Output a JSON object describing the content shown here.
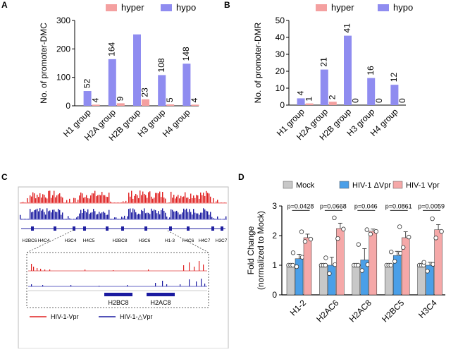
{
  "panel_labels": {
    "a": "A",
    "b": "B",
    "c": "C",
    "d": "D"
  },
  "colors": {
    "hyper": "#f4a0a0",
    "hypo": "#8f8cf0",
    "mock": "#c8c8c8",
    "dvpr": "#4a9fe8",
    "vpr": "#f5a8a8",
    "red_track": "#e02020",
    "blue_track": "#1a1aa0"
  },
  "chart_data": [
    {
      "type": "bar",
      "panel": "A",
      "categories": [
        "H1 group",
        "H2A group",
        "H2B group",
        "H3 group",
        "H4 group"
      ],
      "series": [
        {
          "name": "hyper",
          "values": [
            4,
            9,
            23,
            5,
            4
          ],
          "labels": [
            "4",
            "9",
            "23",
            "5",
            "4"
          ]
        },
        {
          "name": "hypo",
          "values": [
            52,
            164,
            251,
            108,
            148
          ],
          "labels": [
            "52",
            "164",
            "",
            "108",
            "148"
          ]
        }
      ],
      "ylabel": "No. of promoter-DMC",
      "ylim": [
        0,
        300
      ],
      "yticks": [
        "0",
        "100",
        "200",
        "300"
      ],
      "legend": "top"
    },
    {
      "type": "bar",
      "panel": "B",
      "categories": [
        "H1 group",
        "H2A group",
        "H2B group",
        "H3 group",
        "H4 group"
      ],
      "series": [
        {
          "name": "hyper",
          "values": [
            1,
            2,
            0,
            0,
            0
          ],
          "labels": [
            "1",
            "2",
            "0",
            "0",
            "0"
          ]
        },
        {
          "name": "hypo",
          "values": [
            4,
            21,
            41,
            16,
            12
          ],
          "labels": [
            "4",
            "21",
            "41",
            "16",
            "12"
          ]
        }
      ],
      "ylabel": "No. of promoter-DMR",
      "ylim": [
        0,
        50
      ],
      "yticks": [
        "0",
        "10",
        "20",
        "30",
        "40",
        "50"
      ],
      "legend": "top"
    },
    {
      "type": "bar",
      "panel": "D",
      "categories": [
        "H1-2",
        "H2AC6",
        "H2AC8",
        "H2BC5",
        "H3C4"
      ],
      "series": [
        {
          "name": "Mock",
          "values": [
            1,
            1,
            1,
            1,
            1
          ],
          "errors": [
            0.03,
            0.05,
            0.04,
            0.04,
            0.04
          ]
        },
        {
          "name": "HIV-1 ΔVpr",
          "values": [
            1.22,
            1.0,
            1.18,
            1.33,
            1.0
          ],
          "errors": [
            0.15,
            0.27,
            0.38,
            0.14,
            0.1
          ]
        },
        {
          "name": "HIV-1 Vpr",
          "values": [
            1.93,
            2.24,
            2.15,
            1.93,
            2.2
          ],
          "errors": [
            0.12,
            0.18,
            0.07,
            0.2,
            0.17
          ]
        }
      ],
      "points": [
        [
          [
            1.0,
            1.0,
            1.0
          ],
          [
            0.95,
            1.27,
            1.42
          ],
          [
            1.8,
            1.88,
            2.13
          ]
        ],
        [
          [
            1.0,
            1.0,
            1.0
          ],
          [
            0.72,
            1.02,
            1.25
          ],
          [
            1.9,
            2.22,
            2.6
          ]
        ],
        [
          [
            1.0,
            1.0,
            1.0
          ],
          [
            0.82,
            1.02,
            1.7
          ],
          [
            2.05,
            2.14,
            2.2
          ]
        ],
        [
          [
            1.0,
            1.0,
            1.0
          ],
          [
            1.13,
            1.4,
            1.45
          ],
          [
            1.6,
            1.95,
            2.3
          ]
        ],
        [
          [
            1.0,
            1.0,
            1.0
          ],
          [
            0.8,
            1.03,
            1.1
          ],
          [
            1.92,
            2.14,
            2.57
          ]
        ]
      ],
      "pvalues": [
        "p=0.0428",
        "p=0.0668",
        "p=0.046",
        "p=0.0861",
        "p=0.0059"
      ],
      "ylabel": "Fold Change",
      "ylabel2": "(normalized to Mock)",
      "ylim": [
        0,
        3
      ],
      "yticks": [
        "0",
        "1",
        "2",
        "3"
      ],
      "legend": "top"
    }
  ],
  "genome": {
    "genes_top": [
      "H2BC6",
      "H4C4",
      "H3C4",
      "H4C5",
      "H2BC8",
      "H3C6",
      "H1-3",
      "H4C6",
      "H4C7",
      "H3C7"
    ],
    "genes_zoom": [
      "H2BC8",
      "H2AC8"
    ],
    "legend": [
      "HIV-1-Vpr",
      "HIV-1-△Vpr"
    ]
  }
}
